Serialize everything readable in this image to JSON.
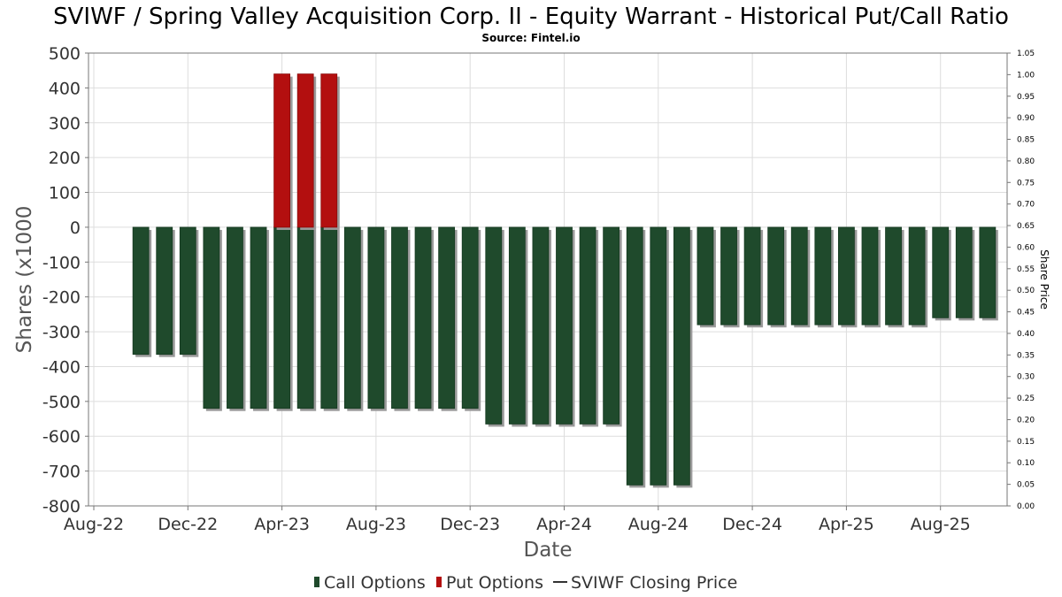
{
  "chart_data": {
    "type": "bar",
    "title": "SVIWF / Spring Valley Acquisition Corp. II - Equity Warrant - Historical Put/Call Ratio",
    "subtitle": "Source: Fintel.io",
    "xlabel": "Date",
    "ylabel": "Shares (x1000",
    "y2label": "Share Price",
    "ylim": [
      -800,
      500
    ],
    "y2lim": [
      0.0,
      1.05
    ],
    "yticks": [
      "500",
      "400",
      "300",
      "200",
      "100",
      "0",
      "-100",
      "-200",
      "-300",
      "-400",
      "-500",
      "-600",
      "-700",
      "-800"
    ],
    "y2ticks": [
      "1.05",
      "1.00",
      "0.95",
      "0.90",
      "0.85",
      "0.80",
      "0.75",
      "0.70",
      "0.65",
      "0.60",
      "0.55",
      "0.50",
      "0.45",
      "0.40",
      "0.35",
      "0.30",
      "0.25",
      "0.20",
      "0.15",
      "0.10",
      "0.05",
      "0.00"
    ],
    "xticks": [
      "Aug-22",
      "Dec-22",
      "Apr-23",
      "Aug-23",
      "Dec-23",
      "Apr-24",
      "Aug-24",
      "Dec-24",
      "Apr-25",
      "Aug-25"
    ],
    "grid": true,
    "legend_position": "bottom",
    "series": [
      {
        "name": "Call Options",
        "color": "#1f4a2c",
        "values": [
          -365,
          -365,
          -365,
          -520,
          -520,
          -520,
          -520,
          -520,
          -520,
          -520,
          -520,
          -520,
          -520,
          -520,
          -520,
          -565,
          -565,
          -565,
          -565,
          -565,
          -565,
          -740,
          -740,
          -740,
          -280,
          -280,
          -280,
          -280,
          -280,
          -280,
          -280,
          -280,
          -280,
          -280,
          -260,
          -260,
          -260
        ]
      },
      {
        "name": "Put Options",
        "color": "#b30f0f",
        "values": [
          0,
          0,
          0,
          0,
          0,
          0,
          440,
          440,
          440,
          0,
          0,
          0,
          0,
          0,
          0,
          0,
          0,
          0,
          0,
          0,
          0,
          0,
          0,
          0,
          0,
          0,
          0,
          0,
          0,
          0,
          0,
          0,
          0,
          0,
          0,
          0,
          0
        ]
      },
      {
        "name": "SVIWF Closing Price",
        "color": "#333333",
        "values": []
      }
    ]
  }
}
